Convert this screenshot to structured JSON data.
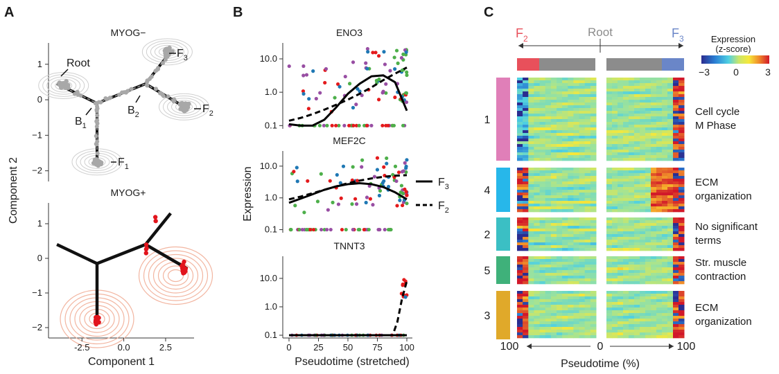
{
  "panels": {
    "A": {
      "letter": "A",
      "top_title": "MYOG−",
      "bottom_title": "MYOG+",
      "xlabel": "Component 1",
      "ylabel": "Component 2",
      "x_ticks": [
        "-2.5",
        "0.0",
        "2.5"
      ],
      "y_ticks_top": [
        "1",
        "0",
        "−1",
        "−2"
      ],
      "y_ticks_bottom": [
        "1",
        "0",
        "−1",
        "−2"
      ],
      "node_labels": {
        "root": "Root",
        "b1": "B",
        "b1_sub": "1",
        "b2": "B",
        "b2_sub": "2",
        "f1": "F",
        "f1_sub": "1",
        "f2": "F",
        "f2_sub": "2",
        "f3": "F",
        "f3_sub": "3"
      }
    },
    "B": {
      "letter": "B",
      "titles": [
        "ENO3",
        "MEF2C",
        "TNNT3"
      ],
      "xlabel": "Pseudotime (stretched)",
      "ylabel": "Expression",
      "x_ticks": [
        "0",
        "25",
        "50",
        "75",
        "100"
      ],
      "y_ticks": [
        "10.0",
        "1.0",
        "0.1"
      ],
      "legend": [
        {
          "label": "F",
          "sub": "3",
          "style": "solid"
        },
        {
          "label": "F",
          "sub": "2",
          "style": "dashed"
        }
      ],
      "point_colors": [
        "#e41a1c",
        "#984ea3",
        "#4daf4a",
        "#1f78b4"
      ]
    },
    "C": {
      "letter": "C",
      "header_left": "F",
      "header_left_sub": "2",
      "header_mid": "Root",
      "header_right": "F",
      "header_right_sub": "3",
      "colorbar_title_1": "Expression",
      "colorbar_title_2": "(z-score)",
      "colorbar_ticks": [
        "−3",
        "0",
        "3"
      ],
      "x_ticks": [
        "100",
        "0",
        "100"
      ],
      "xlabel": "Pseudotime (%)",
      "clusters": [
        {
          "id": "1",
          "color": "#e07fb8",
          "terms": [
            "Cell cycle",
            "M Phase"
          ]
        },
        {
          "id": "4",
          "color": "#27b7ea",
          "terms": [
            "ECM",
            "organization"
          ]
        },
        {
          "id": "2",
          "color": "#3bbfc4",
          "terms": [
            "No significant",
            "terms"
          ]
        },
        {
          "id": "5",
          "color": "#3fb17a",
          "terms": [
            "Str. muscle",
            "contraction"
          ]
        },
        {
          "id": "3",
          "color": "#e0a92a",
          "terms": [
            "ECM",
            "organization"
          ]
        }
      ],
      "colors": {
        "f2": "#e8505b",
        "f3": "#6a86c8",
        "root": "#8c8c8c"
      }
    }
  },
  "chart_data": [
    {
      "type": "scatter",
      "panel": "A-top",
      "title": "MYOG−",
      "xlabel": "Component 1",
      "ylabel": "Component 2",
      "xlim": [
        -4.5,
        4.2
      ],
      "ylim": [
        -2.3,
        1.6
      ],
      "trajectory": [
        {
          "from": "root",
          "to": "b1",
          "points": [
            [
              -4.0,
              0.45
            ],
            [
              -1.6,
              -0.1
            ]
          ]
        },
        {
          "from": "b1",
          "to": "f1",
          "points": [
            [
              -1.6,
              -0.1
            ],
            [
              -1.6,
              -1.7
            ]
          ]
        },
        {
          "from": "b1",
          "to": "b2",
          "points": [
            [
              -1.6,
              -0.1
            ],
            [
              1.3,
              0.45
            ]
          ]
        },
        {
          "from": "b2",
          "to": "f3",
          "points": [
            [
              1.3,
              0.45
            ],
            [
              2.8,
              1.35
            ]
          ]
        },
        {
          "from": "b2",
          "to": "f2",
          "points": [
            [
              1.3,
              0.45
            ],
            [
              3.8,
              -0.25
            ]
          ]
        }
      ],
      "cell_clusters": [
        {
          "name": "Root",
          "center": [
            -3.6,
            0.4
          ],
          "n": 40
        },
        {
          "name": "F1",
          "center": [
            -1.6,
            -1.75
          ],
          "n": 30
        },
        {
          "name": "F2",
          "center": [
            3.6,
            -0.2
          ],
          "n": 30
        },
        {
          "name": "F3",
          "center": [
            2.6,
            1.35
          ],
          "n": 25
        }
      ]
    },
    {
      "type": "scatter",
      "panel": "A-bottom",
      "title": "MYOG+",
      "xlabel": "Component 1",
      "ylabel": "Component 2",
      "xlim": [
        -4.5,
        4.2
      ],
      "ylim": [
        -2.3,
        1.6
      ],
      "cell_clusters": [
        {
          "name": "F1",
          "center": [
            -1.6,
            -1.75
          ],
          "n": 10
        },
        {
          "name": "F2",
          "center": [
            3.6,
            -0.3
          ],
          "n": 18
        },
        {
          "name": "B2",
          "center": [
            1.3,
            0.3
          ],
          "n": 4
        },
        {
          "name": "F3",
          "center": [
            1.9,
            1.15
          ],
          "n": 2
        }
      ]
    },
    {
      "type": "line",
      "panel": "B-ENO3",
      "title": "ENO3",
      "xlabel": "Pseudotime (stretched)",
      "ylabel": "Expression",
      "y_scale": "log",
      "ylim": [
        0.08,
        30
      ],
      "xlim": [
        -3,
        103
      ],
      "series": [
        {
          "name": "F3",
          "style": "solid",
          "x": [
            0,
            10,
            20,
            30,
            40,
            50,
            60,
            70,
            80,
            90,
            100
          ],
          "y": [
            0.11,
            0.1,
            0.1,
            0.15,
            0.35,
            0.9,
            1.8,
            3.0,
            3.2,
            2.0,
            0.28
          ]
        },
        {
          "name": "F2",
          "style": "dashed",
          "x": [
            0,
            10,
            20,
            30,
            40,
            50,
            60,
            70,
            80,
            90,
            100
          ],
          "y": [
            0.14,
            0.17,
            0.22,
            0.3,
            0.42,
            0.6,
            0.9,
            1.4,
            2.3,
            3.6,
            5.5
          ]
        }
      ]
    },
    {
      "type": "line",
      "panel": "B-MEF2C",
      "title": "MEF2C",
      "xlabel": "Pseudotime (stretched)",
      "ylabel": "Expression",
      "y_scale": "log",
      "ylim": [
        0.08,
        30
      ],
      "xlim": [
        -3,
        103
      ],
      "series": [
        {
          "name": "F3",
          "style": "solid",
          "x": [
            0,
            10,
            20,
            30,
            40,
            50,
            60,
            70,
            80,
            90,
            100
          ],
          "y": [
            0.7,
            0.95,
            1.3,
            1.8,
            2.3,
            2.7,
            2.9,
            2.7,
            2.2,
            1.5,
            0.9
          ]
        },
        {
          "name": "F2",
          "style": "dashed",
          "x": [
            0,
            10,
            20,
            30,
            40,
            50,
            60,
            70,
            80,
            90,
            100
          ],
          "y": [
            0.9,
            1.1,
            1.4,
            1.8,
            2.3,
            2.9,
            3.5,
            4.1,
            4.6,
            5.0,
            5.2
          ]
        }
      ]
    },
    {
      "type": "line",
      "panel": "B-TNNT3",
      "title": "TNNT3",
      "xlabel": "Pseudotime (stretched)",
      "ylabel": "Expression",
      "y_scale": "log",
      "ylim": [
        0.08,
        60
      ],
      "xlim": [
        -3,
        103
      ],
      "series": [
        {
          "name": "F3",
          "style": "solid",
          "x": [
            0,
            25,
            50,
            75,
            90,
            100
          ],
          "y": [
            0.1,
            0.1,
            0.1,
            0.1,
            0.1,
            0.1
          ]
        },
        {
          "name": "F2",
          "style": "dashed",
          "x": [
            0,
            25,
            50,
            75,
            88,
            92,
            96,
            100
          ],
          "y": [
            0.1,
            0.1,
            0.1,
            0.1,
            0.1,
            0.3,
            2.0,
            8.0
          ]
        }
      ]
    },
    {
      "type": "heatmap",
      "panel": "C",
      "xlabel": "Pseudotime (%)",
      "value_range": [
        -3,
        3
      ],
      "rows": [
        "1",
        "4",
        "2",
        "5",
        "3"
      ],
      "columns": [
        "F2 branch (100→0)",
        "F3 branch (0→100)"
      ]
    }
  ]
}
